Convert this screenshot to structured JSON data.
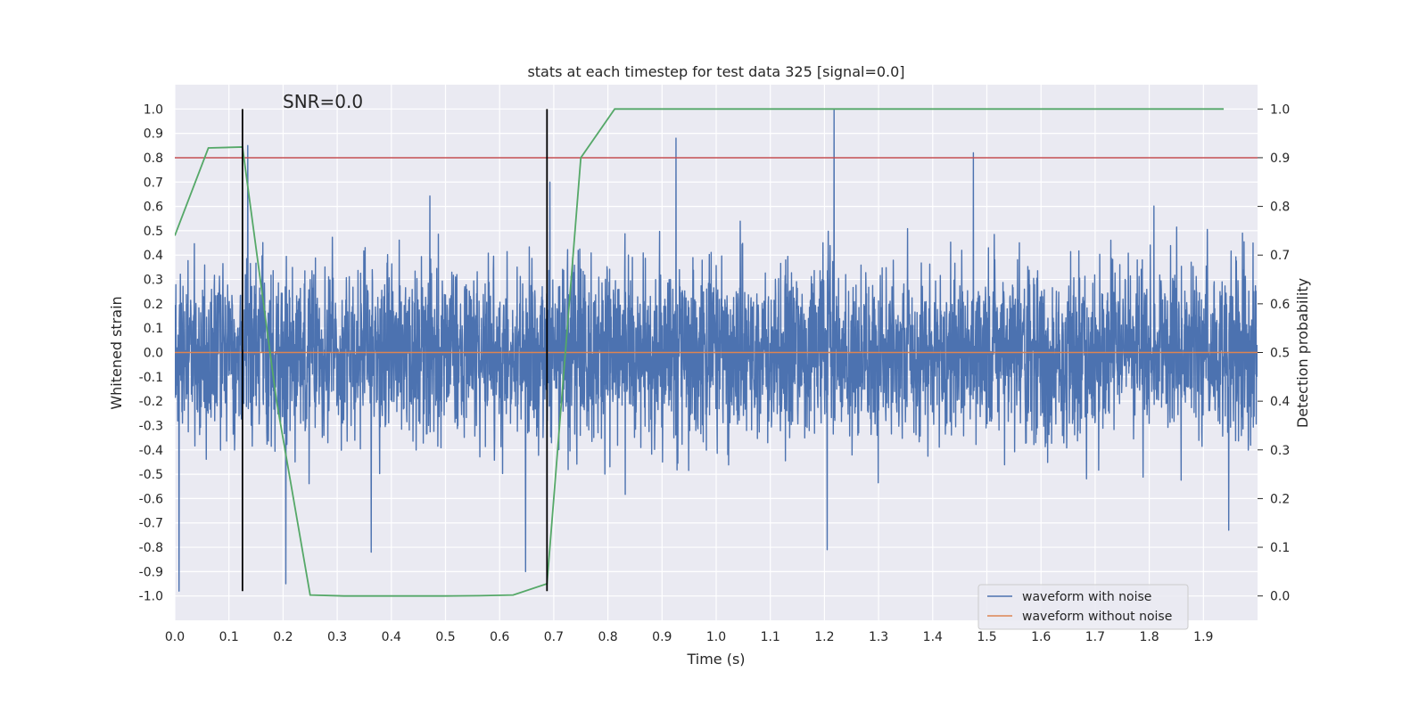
{
  "chart_data": {
    "type": "line",
    "title": "stats at each timestep for test data 325 [signal=0.0]",
    "xlabel": "Time (s)",
    "ylabel": "Whitened strain",
    "y2label": "Detection probability",
    "annotation": "SNR=0.0",
    "xlim": [
      0.0,
      2.0
    ],
    "ylim": [
      -1.1,
      1.1
    ],
    "y2lim": [
      -0.05,
      1.05
    ],
    "x_ticks": [
      "0.0",
      "0.1",
      "0.2",
      "0.3",
      "0.4",
      "0.5",
      "0.6",
      "0.7",
      "0.8",
      "0.9",
      "1.0",
      "1.1",
      "1.2",
      "1.3",
      "1.4",
      "1.5",
      "1.6",
      "1.7",
      "1.8",
      "1.9"
    ],
    "y_ticks": [
      "1.0",
      "0.9",
      "0.8",
      "0.7",
      "0.6",
      "0.5",
      "0.4",
      "0.3",
      "0.2",
      "0.1",
      "0.0",
      "-0.1",
      "-0.2",
      "-0.3",
      "-0.4",
      "-0.5",
      "-0.6",
      "-0.7",
      "-0.8",
      "-0.9",
      "-1.0"
    ],
    "y2_ticks": [
      "1.0",
      "0.9",
      "0.8",
      "0.7",
      "0.6",
      "0.5",
      "0.4",
      "0.3",
      "0.2",
      "0.1",
      "0.0"
    ],
    "grid": true,
    "legend_position": "bottom-right",
    "colors": {
      "noise": "#4c72b0",
      "clean": "#dd8452",
      "probability": "#55a868",
      "threshold": "#c44e52",
      "markers": "#000000",
      "plot_bg": "#eaeaf2"
    },
    "series": [
      {
        "name": "waveform with noise",
        "sample_rate_hz": 2048,
        "duration_s": 2.0,
        "amplitude_envelope": 0.25,
        "peaks": [
          {
            "x": 0.008,
            "y": -0.98
          },
          {
            "x": 0.125,
            "y": -0.27
          },
          {
            "x": 0.135,
            "y": 0.85
          },
          {
            "x": 0.205,
            "y": -0.95
          },
          {
            "x": 0.363,
            "y": -0.82
          },
          {
            "x": 0.648,
            "y": -0.9
          },
          {
            "x": 0.693,
            "y": 0.7
          },
          {
            "x": 0.926,
            "y": 0.88
          },
          {
            "x": 1.205,
            "y": -0.81
          },
          {
            "x": 1.218,
            "y": 1.0
          },
          {
            "x": 1.475,
            "y": 0.82
          },
          {
            "x": 1.947,
            "y": -0.73
          }
        ]
      },
      {
        "name": "waveform without noise",
        "x": [
          0.0,
          2.0
        ],
        "y": [
          0.0,
          0.0
        ]
      },
      {
        "name": "",
        "axis": "right",
        "x": [
          0.0,
          0.062,
          0.125,
          0.188,
          0.25,
          0.3125,
          0.375,
          0.4375,
          0.5,
          0.5625,
          0.625,
          0.6875,
          0.75,
          0.8125,
          0.875,
          0.9375,
          1.0,
          1.0625,
          1.125,
          1.1875,
          1.25,
          1.3125,
          1.375,
          1.4375,
          1.5,
          1.5625,
          1.625,
          1.6875,
          1.75,
          1.8125,
          1.875,
          1.9375
        ],
        "y": [
          0.74,
          0.92,
          0.922,
          0.4,
          0.002,
          0.0,
          0.0,
          0.0,
          0.0,
          0.0005,
          0.002,
          0.025,
          0.9,
          1.0,
          1.0,
          1.0,
          1.0,
          1.0,
          1.0,
          1.0,
          1.0,
          1.0,
          1.0,
          1.0,
          1.0,
          1.0,
          1.0,
          1.0,
          1.0,
          1.0,
          1.0,
          1.0
        ]
      }
    ],
    "threshold": {
      "axis": "right",
      "y": 0.9
    },
    "vertical_markers": {
      "x": [
        0.125,
        0.6875
      ],
      "ymin": -0.98,
      "ymax": 1.0
    }
  }
}
